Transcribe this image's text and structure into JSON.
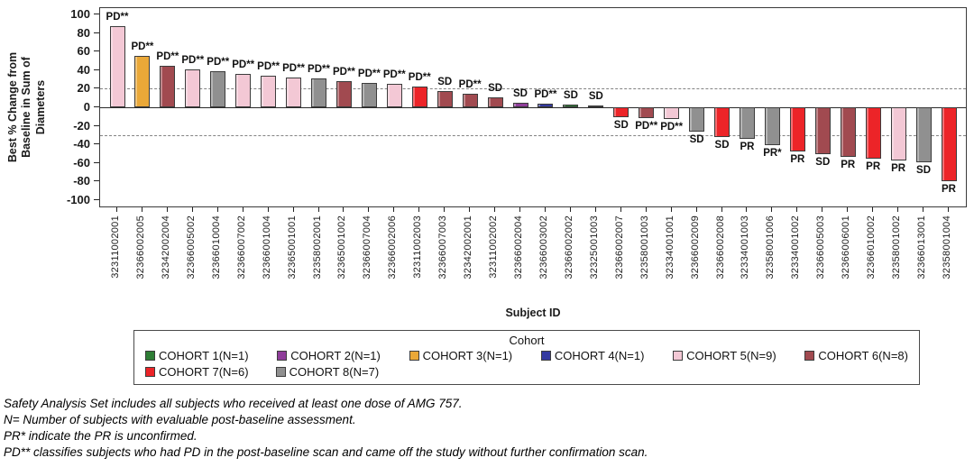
{
  "chart_data": {
    "type": "bar",
    "subtype": "waterfall",
    "title": "",
    "ylabel": "Best % Change from Baseline in Sum of Diameters",
    "xlabel": "Subject ID",
    "ylim": [
      -100,
      100
    ],
    "yticks": [
      100,
      80,
      60,
      40,
      20,
      0,
      -20,
      -40,
      -60,
      -80,
      -100
    ],
    "reference_lines": [
      20,
      -30
    ],
    "grid": "off",
    "legend_position": "bottom",
    "subjects": [
      {
        "id": "32311002001",
        "value": 87,
        "response": "PD**",
        "cohort": 5
      },
      {
        "id": "32366002005",
        "value": 55,
        "response": "PD**",
        "cohort": 3
      },
      {
        "id": "32342002004",
        "value": 45,
        "response": "PD**",
        "cohort": 6
      },
      {
        "id": "32366005002",
        "value": 41,
        "response": "PD**",
        "cohort": 5
      },
      {
        "id": "32366010004",
        "value": 39,
        "response": "PD**",
        "cohort": 8
      },
      {
        "id": "32366007002",
        "value": 36,
        "response": "PD**",
        "cohort": 5
      },
      {
        "id": "32366001004",
        "value": 34,
        "response": "PD**",
        "cohort": 5
      },
      {
        "id": "32365001001",
        "value": 32,
        "response": "PD**",
        "cohort": 5
      },
      {
        "id": "32358002001",
        "value": 31,
        "response": "PD**",
        "cohort": 8
      },
      {
        "id": "32365001002",
        "value": 28,
        "response": "PD**",
        "cohort": 6
      },
      {
        "id": "32366007004",
        "value": 26,
        "response": "PD**",
        "cohort": 8
      },
      {
        "id": "32366002006",
        "value": 25,
        "response": "PD**",
        "cohort": 5
      },
      {
        "id": "32311002003",
        "value": 22,
        "response": "PD**",
        "cohort": 7
      },
      {
        "id": "32366007003",
        "value": 17,
        "response": "SD",
        "cohort": 6
      },
      {
        "id": "32342002001",
        "value": 15,
        "response": "PD**",
        "cohort": 6
      },
      {
        "id": "32311002002",
        "value": 11,
        "response": "SD",
        "cohort": 6
      },
      {
        "id": "32366002004",
        "value": 5,
        "response": "SD",
        "cohort": 2
      },
      {
        "id": "32366003002",
        "value": 4,
        "response": "PD**",
        "cohort": 4
      },
      {
        "id": "32366002002",
        "value": 3,
        "response": "SD",
        "cohort": 1
      },
      {
        "id": "32325001003",
        "value": 2,
        "response": "SD",
        "cohort": 5
      },
      {
        "id": "32366002007",
        "value": -11,
        "response": "SD",
        "cohort": 7
      },
      {
        "id": "32358001003",
        "value": -12,
        "response": "PD**",
        "cohort": 6
      },
      {
        "id": "32334001001",
        "value": -13,
        "response": "PD**",
        "cohort": 5
      },
      {
        "id": "32366002009",
        "value": -26,
        "response": "SD",
        "cohort": 8
      },
      {
        "id": "32366002008",
        "value": -32,
        "response": "SD",
        "cohort": 7
      },
      {
        "id": "32334001003",
        "value": -34,
        "response": "PR",
        "cohort": 8
      },
      {
        "id": "32358001006",
        "value": -41,
        "response": "PR*",
        "cohort": 8
      },
      {
        "id": "32334001002",
        "value": -48,
        "response": "PR",
        "cohort": 7
      },
      {
        "id": "32366005003",
        "value": -50,
        "response": "SD",
        "cohort": 6
      },
      {
        "id": "32366006001",
        "value": -53,
        "response": "PR",
        "cohort": 6
      },
      {
        "id": "32366010002",
        "value": -55,
        "response": "PR",
        "cohort": 7
      },
      {
        "id": "32358001002",
        "value": -57,
        "response": "PR",
        "cohort": 5
      },
      {
        "id": "32366013001",
        "value": -59,
        "response": "SD",
        "cohort": 8
      },
      {
        "id": "32358001004",
        "value": -80,
        "response": "PR",
        "cohort": 7
      }
    ]
  },
  "legend": {
    "title": "Cohort",
    "rows": [
      [
        {
          "cohort": 1,
          "label": "COHORT 1(N=1)",
          "color": "#2e7d35"
        },
        {
          "cohort": 2,
          "label": "COHORT 2(N=1)",
          "color": "#8f3d9a"
        },
        {
          "cohort": 3,
          "label": "COHORT 3(N=1)",
          "color": "#eaa838"
        },
        {
          "cohort": 4,
          "label": "COHORT 4(N=1)",
          "color": "#3339a0"
        },
        {
          "cohort": 5,
          "label": "COHORT 5(N=9)",
          "color": "#f3c8d5"
        },
        {
          "cohort": 6,
          "label": "COHORT 6(N=8)",
          "color": "#a14a50"
        }
      ],
      [
        {
          "cohort": 7,
          "label": "COHORT 7(N=6)",
          "color": "#ec2428"
        },
        {
          "cohort": 8,
          "label": "COHORT 8(N=7)",
          "color": "#909090"
        }
      ]
    ]
  },
  "footnotes": [
    "Safety Analysis Set includes all subjects who received at least one dose of AMG 757.",
    "N= Number of subjects with evaluable post-baseline assessment.",
    "PR* indicate the PR is unconfirmed.",
    "PD** classifies subjects who had PD in the post-baseline scan and came off the study without further confirmation scan."
  ]
}
